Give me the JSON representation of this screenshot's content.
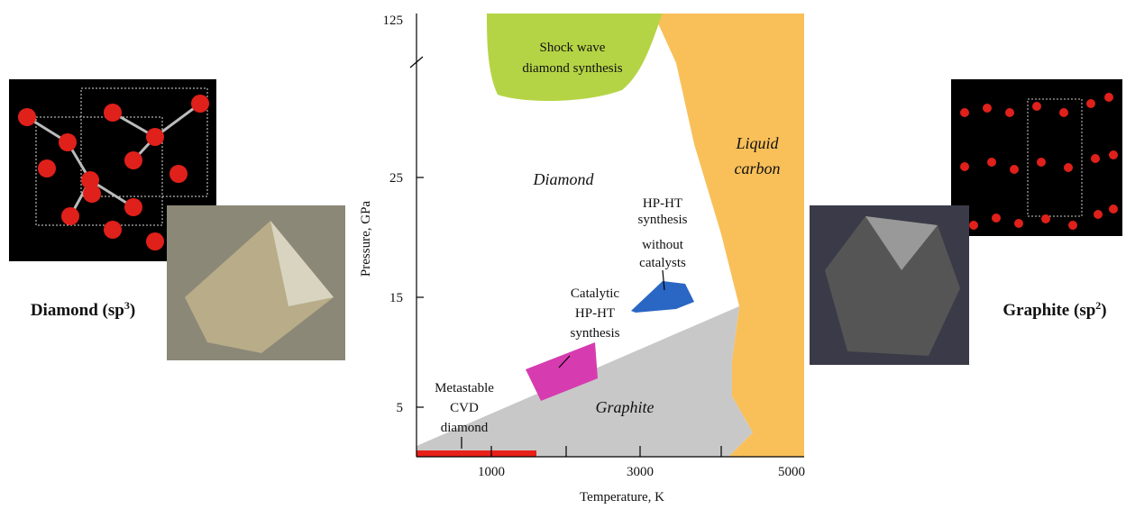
{
  "left_caption": {
    "name": "Diamond (sp",
    "superscript": "3",
    "suffix": ")"
  },
  "right_caption": {
    "name": "Graphite (sp",
    "superscript": "2",
    "suffix": ")"
  },
  "diagram": {
    "x_axis_label": "Temperature, K",
    "y_axis_label": "Pressure, GPa",
    "x_tick_labels": [
      "1000",
      "3000",
      "5000"
    ],
    "y_tick_labels": [
      "125",
      "25",
      "15",
      "5"
    ],
    "regions": {
      "shock_wave": [
        "Shock wave",
        "diamond synthesis"
      ],
      "diamond": "Diamond",
      "liquid_carbon": [
        "Liquid",
        "carbon"
      ],
      "graphite": "Graphite",
      "hpht_no_catalyst": [
        "HP-HT",
        "synthesis",
        "without",
        "catalysts"
      ],
      "catalytic": [
        "Catalytic",
        "HP-HT",
        "synthesis"
      ],
      "cvd": [
        "Metastable",
        "CVD",
        "diamond"
      ]
    }
  }
}
